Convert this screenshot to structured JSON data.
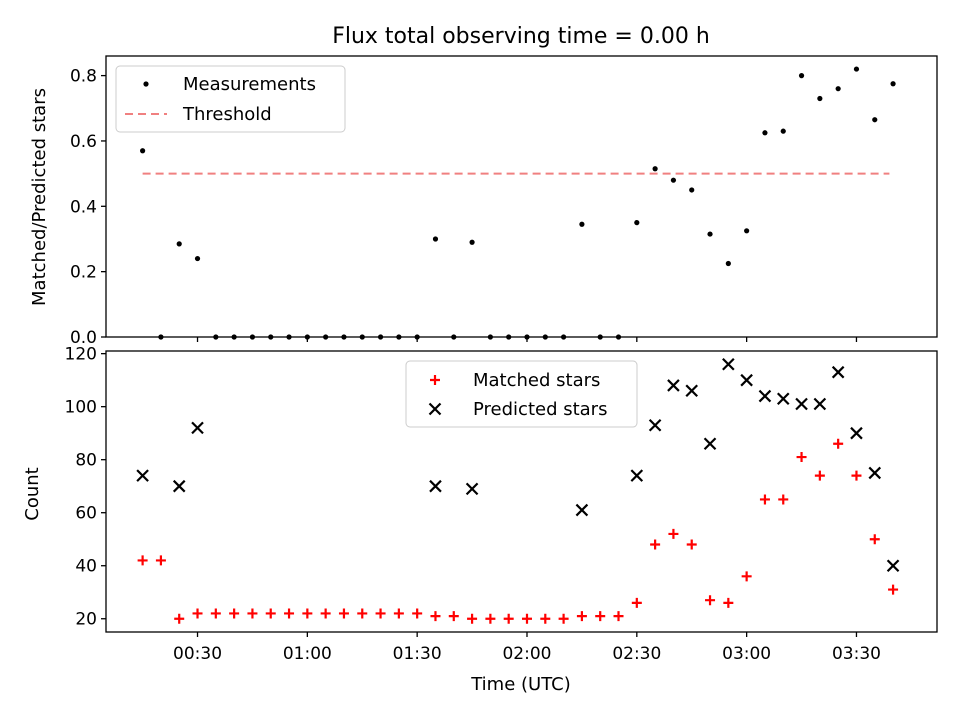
{
  "chart_data": [
    {
      "type": "scatter",
      "title": "Flux total observing time = 0.00 h",
      "ylabel": "Matched/Predicted stars",
      "xlabel": "",
      "ylim": [
        0,
        0.86
      ],
      "yticks": [
        "0.0",
        "0.2",
        "0.4",
        "0.6",
        "0.8"
      ],
      "ytick_values": [
        0,
        0.2,
        0.4,
        0.6,
        0.8
      ],
      "legend_position": "upper-left",
      "threshold": {
        "name": "Threshold",
        "value": 0.5,
        "color": "#f08080",
        "from": "00:15",
        "to": "03:39"
      },
      "series": [
        {
          "name": "Measurements",
          "color": "#000000",
          "points": [
            [
              "00:15",
              0.57
            ],
            [
              "00:20",
              0.0
            ],
            [
              "00:25",
              0.285
            ],
            [
              "00:30",
              0.24
            ],
            [
              "00:35",
              0.0
            ],
            [
              "00:40",
              0.0
            ],
            [
              "00:45",
              0.0
            ],
            [
              "00:50",
              0.0
            ],
            [
              "00:55",
              0.0
            ],
            [
              "01:00",
              0.0
            ],
            [
              "01:05",
              0.0
            ],
            [
              "01:10",
              0.0
            ],
            [
              "01:15",
              0.0
            ],
            [
              "01:20",
              0.0
            ],
            [
              "01:25",
              0.0
            ],
            [
              "01:30",
              0.0
            ],
            [
              "01:35",
              0.3
            ],
            [
              "01:40",
              0.0
            ],
            [
              "01:45",
              0.29
            ],
            [
              "01:50",
              0.0
            ],
            [
              "01:55",
              0.0
            ],
            [
              "02:00",
              0.0
            ],
            [
              "02:05",
              0.0
            ],
            [
              "02:10",
              0.0
            ],
            [
              "02:15",
              0.345
            ],
            [
              "02:20",
              0.0
            ],
            [
              "02:25",
              0.0
            ],
            [
              "02:30",
              0.35
            ],
            [
              "02:35",
              0.515
            ],
            [
              "02:40",
              0.48
            ],
            [
              "02:45",
              0.45
            ],
            [
              "02:50",
              0.315
            ],
            [
              "02:55",
              0.225
            ],
            [
              "03:00",
              0.325
            ],
            [
              "03:05",
              0.625
            ],
            [
              "03:10",
              0.63
            ],
            [
              "03:15",
              0.8
            ],
            [
              "03:20",
              0.73
            ],
            [
              "03:25",
              0.76
            ],
            [
              "03:30",
              0.82
            ],
            [
              "03:35",
              0.665
            ],
            [
              "03:40",
              0.775
            ]
          ]
        }
      ]
    },
    {
      "type": "scatter",
      "title": "",
      "ylabel": "Count",
      "xlabel": "Time (UTC)",
      "ylim": [
        15,
        121
      ],
      "yticks": [
        "20",
        "40",
        "60",
        "80",
        "100",
        "120"
      ],
      "ytick_values": [
        20,
        40,
        60,
        80,
        100,
        120
      ],
      "xticks": [
        "00:30",
        "01:00",
        "01:30",
        "02:00",
        "02:30",
        "03:00",
        "03:30"
      ],
      "xtick_values": [
        "00:30",
        "01:00",
        "01:30",
        "02:00",
        "02:30",
        "03:00",
        "03:30"
      ],
      "xlim": [
        "00:05",
        "03:52"
      ],
      "legend_position": "upper-center",
      "series": [
        {
          "name": "Matched stars",
          "color": "#ff0000",
          "marker": "plus",
          "points": [
            [
              "00:15",
              42
            ],
            [
              "00:20",
              42
            ],
            [
              "00:25",
              20
            ],
            [
              "00:30",
              22
            ],
            [
              "00:35",
              22
            ],
            [
              "00:40",
              22
            ],
            [
              "00:45",
              22
            ],
            [
              "00:50",
              22
            ],
            [
              "00:55",
              22
            ],
            [
              "01:00",
              22
            ],
            [
              "01:05",
              22
            ],
            [
              "01:10",
              22
            ],
            [
              "01:15",
              22
            ],
            [
              "01:20",
              22
            ],
            [
              "01:25",
              22
            ],
            [
              "01:30",
              22
            ],
            [
              "01:35",
              21
            ],
            [
              "01:40",
              21
            ],
            [
              "01:45",
              20
            ],
            [
              "01:50",
              20
            ],
            [
              "01:55",
              20
            ],
            [
              "02:00",
              20
            ],
            [
              "02:05",
              20
            ],
            [
              "02:10",
              20
            ],
            [
              "02:15",
              21
            ],
            [
              "02:20",
              21
            ],
            [
              "02:25",
              21
            ],
            [
              "02:30",
              26
            ],
            [
              "02:35",
              48
            ],
            [
              "02:40",
              52
            ],
            [
              "02:45",
              48
            ],
            [
              "02:50",
              27
            ],
            [
              "02:55",
              26
            ],
            [
              "03:00",
              36
            ],
            [
              "03:05",
              65
            ],
            [
              "03:10",
              65
            ],
            [
              "03:15",
              81
            ],
            [
              "03:20",
              74
            ],
            [
              "03:25",
              86
            ],
            [
              "03:30",
              74
            ],
            [
              "03:35",
              50
            ],
            [
              "03:40",
              31
            ]
          ]
        },
        {
          "name": "Predicted stars",
          "color": "#000000",
          "marker": "x",
          "points": [
            [
              "00:15",
              74
            ],
            [
              "00:25",
              70
            ],
            [
              "00:30",
              92
            ],
            [
              "01:35",
              70
            ],
            [
              "01:45",
              69
            ],
            [
              "02:15",
              61
            ],
            [
              "02:30",
              74
            ],
            [
              "02:35",
              93
            ],
            [
              "02:40",
              108
            ],
            [
              "02:45",
              106
            ],
            [
              "02:50",
              86
            ],
            [
              "02:55",
              116
            ],
            [
              "03:00",
              110
            ],
            [
              "03:05",
              104
            ],
            [
              "03:10",
              103
            ],
            [
              "03:15",
              101
            ],
            [
              "03:20",
              101
            ],
            [
              "03:25",
              113
            ],
            [
              "03:30",
              90
            ],
            [
              "03:35",
              75
            ],
            [
              "03:40",
              40
            ]
          ]
        }
      ]
    }
  ]
}
